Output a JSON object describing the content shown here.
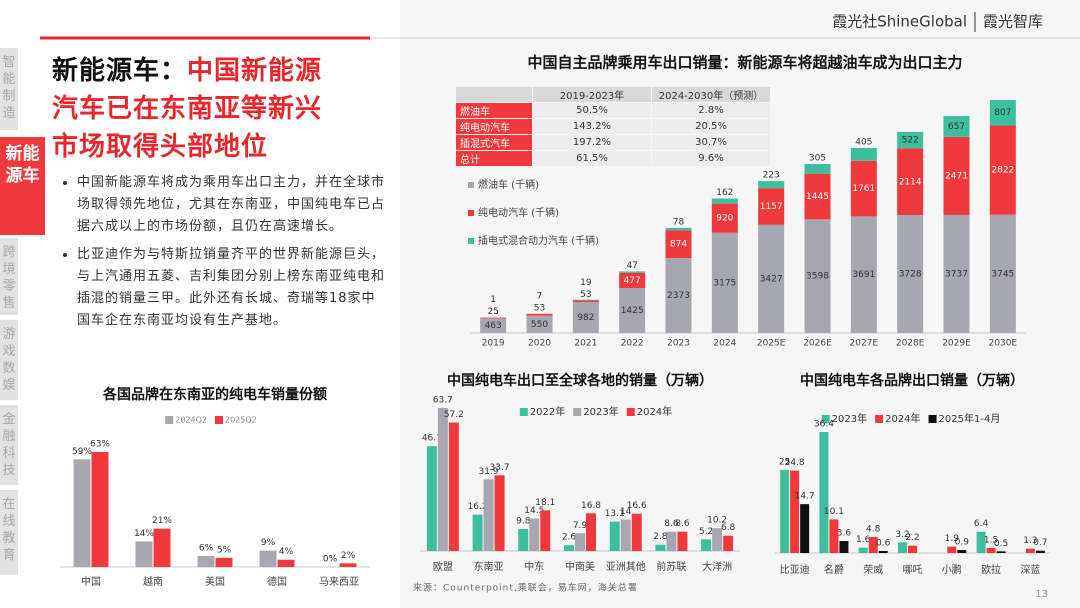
{
  "header": {
    "brand": "霞光社ShineGlobal",
    "product": "霞光智库"
  },
  "sidebar": {
    "tabs": [
      "智能制造",
      "新能源车",
      "跨境零售",
      "游戏数娱",
      "金融科技",
      "在线教育"
    ],
    "active": 1
  },
  "heading": {
    "prefix": "新能源车：",
    "title": "中国新能源汽车已在东南亚等新兴市场取得头部地位"
  },
  "bullets": [
    "中国新能源车将成为乘用车出口主力，并在全球市场取得领先地位，尤其在东南亚，中国纯电车已占据六成以上的市场份额，且仍在高速增长。",
    "比亚迪作为与特斯拉销量齐平的世界新能源巨头，与上汽通用五菱、吉利集团分别上榜东南亚纯电和插混的销量三甲。此外还有长城、奇瑞等18家中国车企在东南亚均设有生产基地。"
  ],
  "table": {
    "header": [
      "2019-2023年",
      "2024-2030年（预测）"
    ],
    "rows": [
      [
        "燃油车",
        "50.5%",
        "2.8%"
      ],
      [
        "纯电动汽车",
        "143.2%",
        "20.5%"
      ],
      [
        "插混式汽车",
        "197.2%",
        "30.7%"
      ],
      [
        "总计",
        "61.5%",
        "9.6%"
      ]
    ]
  },
  "chart_data": [
    {
      "type": "stacked_bar",
      "title": "中国自主品牌乘用车出口销量：新能源车将超越油车成为出口主力",
      "categories": [
        "2019",
        "2020",
        "2021",
        "2022",
        "2023",
        "2024",
        "2025E",
        "2026E",
        "2027E",
        "2028E",
        "2029E",
        "2030E"
      ],
      "series": [
        {
          "name": "燃油车 (千辆)",
          "color": "#a7a7b1",
          "values": [
            463,
            550,
            982,
            1425,
            2373,
            3175,
            3427,
            3598,
            3691,
            3728,
            3737,
            3745
          ]
        },
        {
          "name": "纯电动汽车 (千辆)",
          "color": "#f0393c",
          "values": [
            25,
            53,
            53,
            477,
            874,
            920,
            1157,
            1445,
            1761,
            2114,
            2471,
            2822
          ]
        },
        {
          "name": "插电式混合动力汽车 (千辆)",
          "color": "#3dbf9e",
          "values": [
            1,
            7,
            19,
            47,
            78,
            162,
            223,
            305,
            405,
            522,
            657,
            807
          ]
        }
      ]
    },
    {
      "type": "bar",
      "title": "各国品牌在东南亚的纯电车销量份额",
      "categories": [
        "中国",
        "越南",
        "美国",
        "德国",
        "马来西亚"
      ],
      "series": [
        {
          "name": "2024Q2",
          "color": "#a7a7b1",
          "values": [
            59,
            14,
            6,
            9,
            0
          ],
          "value_labels": [
            "59%",
            "14%",
            "6%",
            "9%",
            "0%"
          ]
        },
        {
          "name": "2025Q2",
          "color": "#f0393c",
          "values": [
            63,
            21,
            5,
            4,
            2
          ],
          "value_labels": [
            "63%",
            "21%",
            "5%",
            "4%",
            "2%"
          ]
        }
      ]
    },
    {
      "type": "bar",
      "title": "中国纯电车出口至全球各地的销量（万辆）",
      "categories": [
        "欧盟",
        "东南亚",
        "中东",
        "中南美",
        "亚洲其他",
        "前苏联",
        "大洋洲"
      ],
      "series": [
        {
          "name": "2022年",
          "color": "#3dbf9e",
          "values": [
            46.7,
            16.2,
            9.8,
            2.6,
            13.1,
            2.8,
            5.2
          ]
        },
        {
          "name": "2023年",
          "color": "#a7a7b1",
          "values": [
            63.7,
            31.9,
            14.5,
            7.9,
            14,
            8.6,
            10.2
          ]
        },
        {
          "name": "2024年",
          "color": "#f0393c",
          "values": [
            57.2,
            33.7,
            18.1,
            16.8,
            16.6,
            8.6,
            6.8
          ]
        }
      ]
    },
    {
      "type": "bar",
      "title": "中国纯电车各品牌出口销量（万辆）",
      "categories": [
        "比亚迪",
        "名爵",
        "荣威",
        "哪吒",
        "小鹏",
        "欧拉",
        "深蓝"
      ],
      "series": [
        {
          "name": "2023年",
          "color": "#3dbf9e",
          "values": [
            25,
            36.4,
            1.6,
            3.2,
            null,
            6.4,
            null
          ]
        },
        {
          "name": "2024年",
          "color": "#f0393c",
          "values": [
            24.8,
            10.1,
            4.8,
            2.2,
            1.9,
            1.5,
            1.3
          ]
        },
        {
          "name": "2025年1-4月",
          "color": "#111111",
          "values": [
            14.7,
            3.6,
            0.6,
            null,
            0.9,
            0.5,
            0.7
          ]
        }
      ]
    }
  ],
  "source": "来源：Counterpoint,乘联会，易车网，海关总署",
  "page_number": "13"
}
